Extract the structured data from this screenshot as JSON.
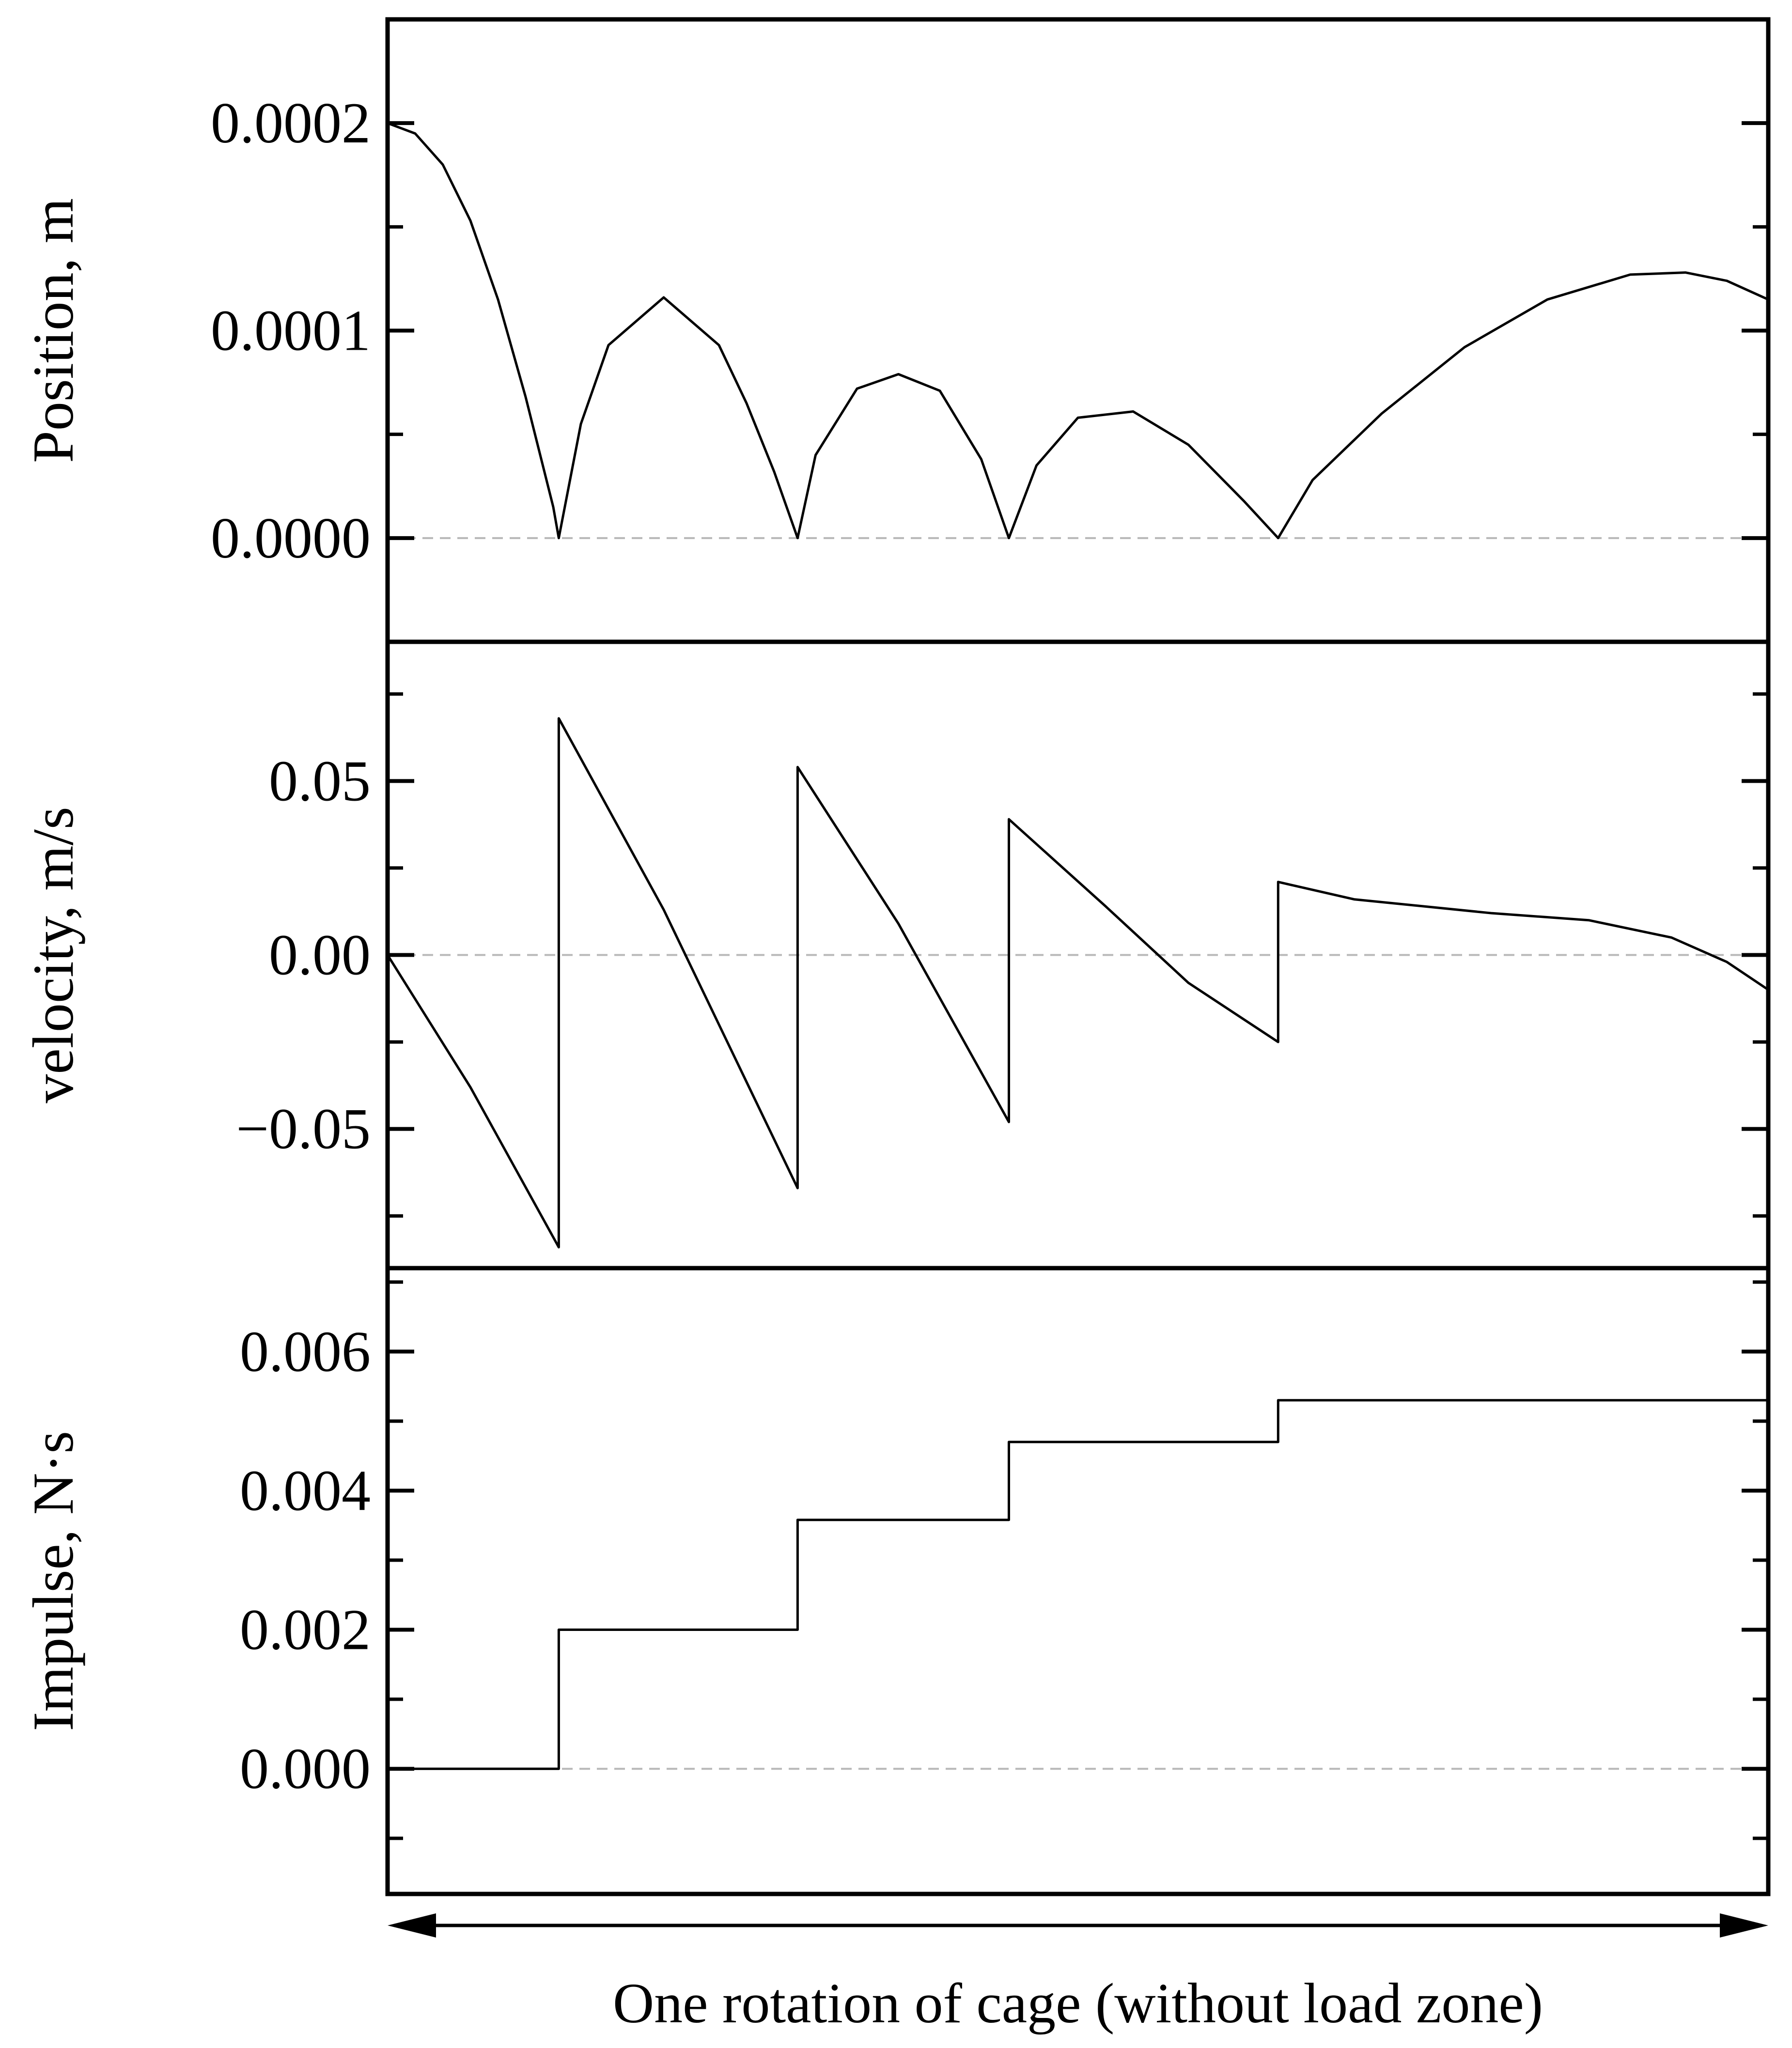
{
  "chart_data": [
    {
      "type": "line",
      "ylabel": "Position, m",
      "ylim": [
        -5e-05,
        0.00025
      ],
      "yticks": [
        0.0,
        0.0001,
        0.0002
      ],
      "ytick_labels": [
        "0.0000",
        "0.0001",
        "0.0002"
      ],
      "zero_line": true,
      "series": [
        {
          "x": [
            0,
            0.02,
            0.04,
            0.06,
            0.08,
            0.1,
            0.12,
            0.124,
            0.14,
            0.16,
            0.2,
            0.24,
            0.26,
            0.28,
            0.297,
            0.31,
            0.34,
            0.37,
            0.4,
            0.43,
            0.45,
            0.47,
            0.5,
            0.54,
            0.58,
            0.62,
            0.645,
            0.67,
            0.72,
            0.78,
            0.84,
            0.9,
            0.94,
            0.97,
            1.0
          ],
          "y": [
            0.0002,
            0.000195,
            0.00018,
            0.000153,
            0.000115,
            6.8e-05,
            1.5e-05,
            0.0,
            5.5e-05,
            9.3e-05,
            0.000116,
            9.3e-05,
            6.5e-05,
            3.2e-05,
            0.0,
            4e-05,
            7.2e-05,
            7.9e-05,
            7.1e-05,
            3.8e-05,
            0.0,
            3.5e-05,
            5.8e-05,
            6.1e-05,
            4.5e-05,
            1.8e-05,
            0.0,
            2.8e-05,
            6e-05,
            9.2e-05,
            0.000115,
            0.000127,
            0.000128,
            0.000124,
            0.000115
          ]
        }
      ]
    },
    {
      "type": "line",
      "ylabel": "velocity, m/s",
      "ylim": [
        -0.09,
        0.09
      ],
      "yticks": [
        -0.05,
        0.0,
        0.05
      ],
      "ytick_labels": [
        "−0.05",
        "0.00",
        "0.05"
      ],
      "zero_line": true,
      "series": [
        {
          "x": [
            0,
            0.06,
            0.124,
            0.124,
            0.2,
            0.297,
            0.297,
            0.37,
            0.45,
            0.45,
            0.52,
            0.58,
            0.645,
            0.645,
            0.7,
            0.8,
            0.87,
            0.93,
            0.97,
            1.0
          ],
          "y": [
            0.0,
            -0.038,
            -0.084,
            0.068,
            0.013,
            -0.067,
            0.054,
            0.009,
            -0.048,
            0.039,
            0.014,
            -0.008,
            -0.025,
            0.021,
            0.016,
            0.012,
            0.01,
            0.005,
            -0.002,
            -0.01
          ]
        }
      ]
    },
    {
      "type": "line",
      "ylabel": "Impulse, N·s",
      "ylim": [
        -0.0018,
        0.0072
      ],
      "yticks": [
        0.0,
        0.002,
        0.004,
        0.006
      ],
      "ytick_labels": [
        "0.000",
        "0.002",
        "0.004",
        "0.006"
      ],
      "zero_line": true,
      "xlabel": "One rotation of cage (without load zone)",
      "series": [
        {
          "x": [
            0,
            0.124,
            0.124,
            0.297,
            0.297,
            0.45,
            0.45,
            0.645,
            0.645,
            1.0
          ],
          "y": [
            0.0,
            0.0,
            0.002,
            0.002,
            0.00358,
            0.00358,
            0.0047,
            0.0047,
            0.0053,
            0.0053
          ]
        }
      ]
    }
  ],
  "colors": {
    "line": "#000000",
    "zero_line": "#b8b8b8",
    "frame": "#000000"
  }
}
